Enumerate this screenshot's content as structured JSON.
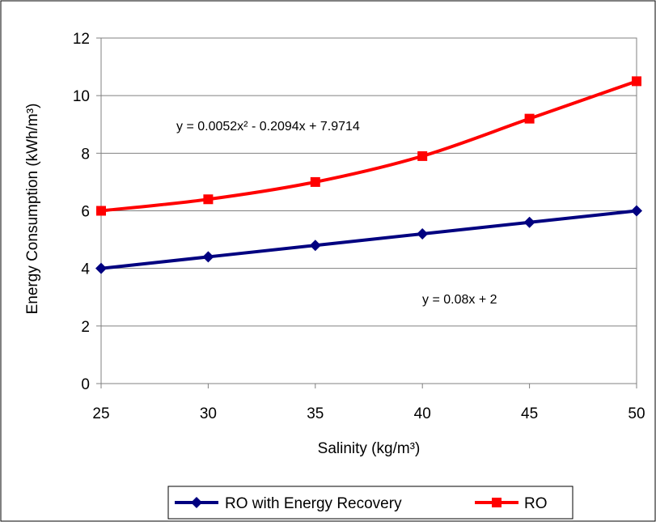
{
  "chart_data": {
    "type": "line",
    "x": [
      25,
      30,
      35,
      40,
      45,
      50
    ],
    "series": [
      {
        "name": "RO with Energy Recovery",
        "values": [
          4.0,
          4.4,
          4.8,
          5.2,
          5.6,
          6.0
        ],
        "color": "#000080",
        "marker": "diamond"
      },
      {
        "name": "RO",
        "values": [
          6.0,
          6.4,
          7.0,
          7.9,
          9.2,
          10.5
        ],
        "color": "#ff0000",
        "marker": "square"
      }
    ],
    "xlabel": "Salinity (kg/m³)",
    "ylabel": "Energy Consumption (kWh/m³)",
    "xlim": [
      25,
      50
    ],
    "ylim": [
      0,
      12
    ],
    "x_ticks": [
      "25",
      "30",
      "35",
      "40",
      "45",
      "50"
    ],
    "y_ticks": [
      "0",
      "2",
      "4",
      "6",
      "8",
      "10",
      "12"
    ],
    "grid": "horizontal",
    "legend_position": "bottom",
    "annotations": [
      {
        "text": "y = 0.0052x² - 0.2094x + 7.9714",
        "series": "RO"
      },
      {
        "text": "y = 0.08x + 2",
        "series": "RO with Energy Recovery"
      }
    ]
  }
}
